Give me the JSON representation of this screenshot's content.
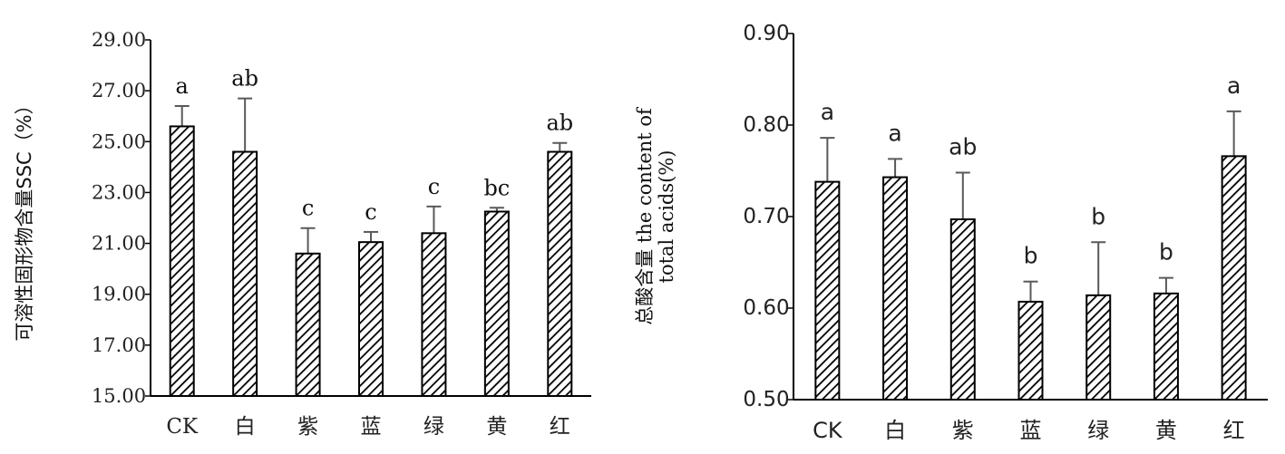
{
  "chart_data": [
    {
      "type": "bar",
      "title": "",
      "ylabel": "可溶性固形物含量SSC（%）",
      "xlabel": "",
      "ylim": [
        15,
        29
      ],
      "yticks": [
        "15.00",
        "17.00",
        "19.00",
        "21.00",
        "23.00",
        "25.00",
        "27.00",
        "29.00"
      ],
      "categories": [
        "CK",
        "白",
        "紫",
        "蓝",
        "绿",
        "黄",
        "红"
      ],
      "values": [
        25.6,
        24.6,
        20.6,
        21.05,
        21.4,
        22.25,
        24.6
      ],
      "errors": [
        0.8,
        2.1,
        1.0,
        0.4,
        1.05,
        0.15,
        0.35
      ],
      "significance": [
        "a",
        "ab",
        "c",
        "c",
        "c",
        "bc",
        "ab"
      ],
      "bar_fill": "diagonal hatch",
      "bar_color": "#000000",
      "grid": false
    },
    {
      "type": "bar",
      "title": "",
      "ylabel": "总酸含量 the content of total acids(%)",
      "ylabel_lines": [
        "总酸含量 the content of",
        "total acids(%)"
      ],
      "xlabel": "",
      "ylim": [
        0.5,
        0.9
      ],
      "yticks": [
        "0.50",
        "0.60",
        "0.70",
        "0.80",
        "0.90"
      ],
      "categories": [
        "CK",
        "白",
        "紫",
        "蓝",
        "绿",
        "黄",
        "红"
      ],
      "values": [
        0.738,
        0.743,
        0.697,
        0.607,
        0.614,
        0.616,
        0.766
      ],
      "errors": [
        0.048,
        0.02,
        0.051,
        0.022,
        0.058,
        0.017,
        0.049
      ],
      "significance": [
        "a",
        "a",
        "ab",
        "b",
        "b",
        "b",
        "a"
      ],
      "bar_fill": "diagonal hatch",
      "bar_color": "#000000",
      "grid": false
    }
  ]
}
